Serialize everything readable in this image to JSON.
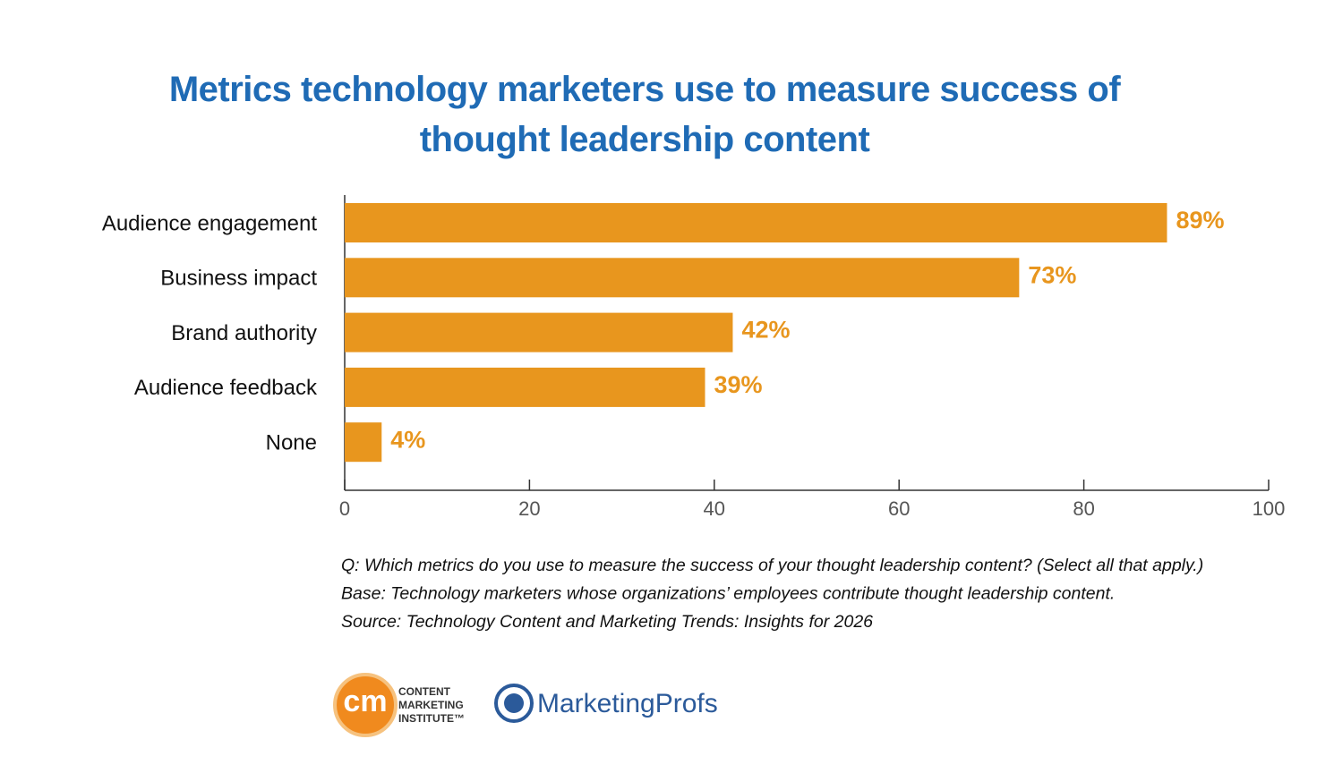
{
  "chart_data": {
    "type": "hbar",
    "title": "Metrics technology marketers use to measure success of thought leadership content",
    "categories": [
      "Audience engagement",
      "Business impact",
      "Brand authority",
      "Audience feedback",
      "None"
    ],
    "values": [
      89,
      73,
      42,
      39,
      4
    ],
    "value_labels": [
      "89%",
      "73%",
      "42%",
      "39%",
      "4%"
    ],
    "color": "#e8961e",
    "xlim": [
      0,
      100
    ],
    "xticks": [
      0,
      20,
      40,
      60,
      80,
      100
    ],
    "notes": [
      "Q: Which metrics do you use to measure the success of your thought leadership content? (Select all that apply.)",
      "Base: Technology marketers whose organizations’ employees contribute thought leadership content.",
      "Source: Technology Content and Marketing Trends: Insights for 2026"
    ],
    "logos": {
      "cmi_mark": "cm",
      "cmi_name": [
        "CONTENT",
        "MARKETING",
        "INSTITUTE™"
      ],
      "mprofs_name": "MarketingProfs"
    }
  }
}
